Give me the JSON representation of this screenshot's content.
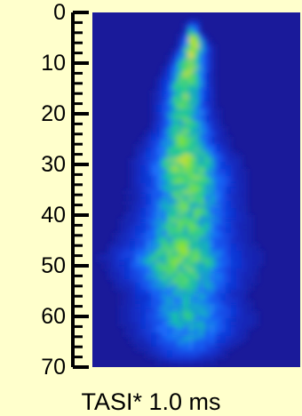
{
  "chart_data": {
    "type": "heatmap",
    "caption": "TASI* 1.0 ms",
    "y_axis": {
      "ticks": [
        0,
        10,
        20,
        30,
        40,
        50,
        60,
        70
      ],
      "ylim": [
        0,
        70
      ],
      "minor_step": 2,
      "orientation": "increasing-downward"
    },
    "colormap": [
      "#1a1a9a",
      "#1036d8",
      "#1c72ff",
      "#12c6a0",
      "#78e23a",
      "#e8e010"
    ],
    "background_color": "#1a1a9a",
    "intensity_profile": [
      {
        "y": 4,
        "center": 0.48,
        "width": 0.04,
        "peak": 0.75
      },
      {
        "y": 7,
        "center": 0.49,
        "width": 0.07,
        "peak": 0.95
      },
      {
        "y": 10,
        "center": 0.47,
        "width": 0.09,
        "peak": 0.8
      },
      {
        "y": 14,
        "center": 0.45,
        "width": 0.11,
        "peak": 0.8
      },
      {
        "y": 18,
        "center": 0.44,
        "width": 0.12,
        "peak": 0.7
      },
      {
        "y": 22,
        "center": 0.45,
        "width": 0.14,
        "peak": 0.65
      },
      {
        "y": 26,
        "center": 0.44,
        "width": 0.17,
        "peak": 0.7
      },
      {
        "y": 29,
        "center": 0.45,
        "width": 0.2,
        "peak": 0.85
      },
      {
        "y": 33,
        "center": 0.46,
        "width": 0.22,
        "peak": 0.75
      },
      {
        "y": 37,
        "center": 0.46,
        "width": 0.22,
        "peak": 0.7
      },
      {
        "y": 41,
        "center": 0.45,
        "width": 0.24,
        "peak": 0.7
      },
      {
        "y": 45,
        "center": 0.43,
        "width": 0.26,
        "peak": 0.65
      },
      {
        "y": 48,
        "center": 0.42,
        "width": 0.3,
        "peak": 0.75
      },
      {
        "y": 52,
        "center": 0.43,
        "width": 0.28,
        "peak": 0.7
      },
      {
        "y": 56,
        "center": 0.45,
        "width": 0.26,
        "peak": 0.5
      },
      {
        "y": 60,
        "center": 0.46,
        "width": 0.27,
        "peak": 0.55
      },
      {
        "y": 64,
        "center": 0.46,
        "width": 0.25,
        "peak": 0.45
      },
      {
        "y": 67,
        "center": 0.45,
        "width": 0.2,
        "peak": 0.3
      }
    ],
    "grid": false
  }
}
